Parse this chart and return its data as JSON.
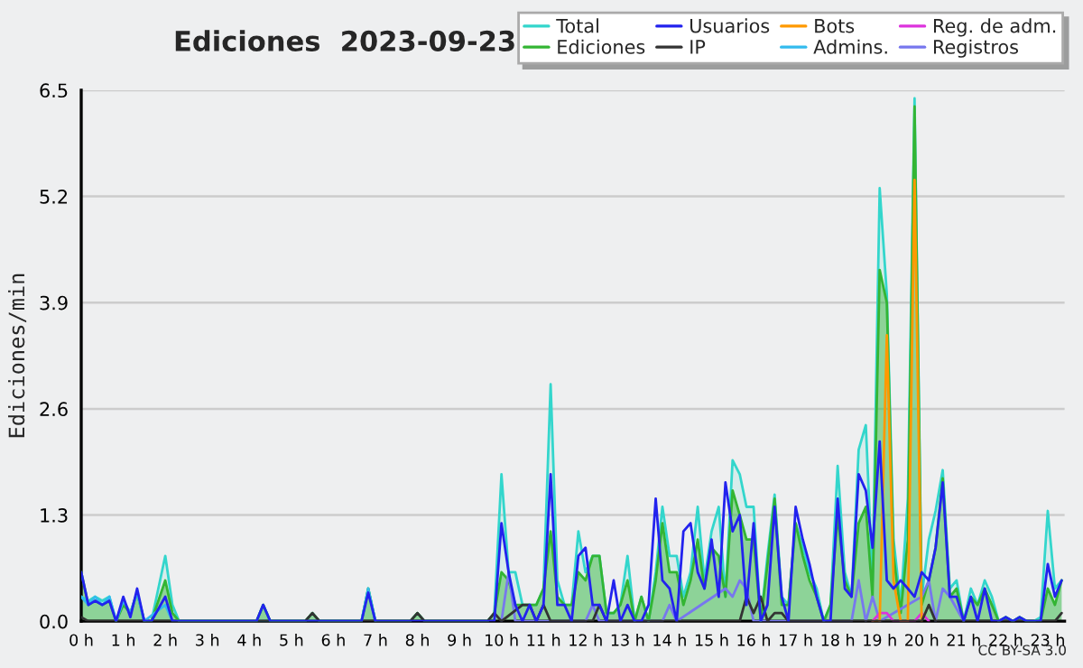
{
  "chart_data": {
    "type": "line",
    "title": "Ediciones  2023-09-23",
    "ylabel": "Ediciones/min",
    "annotations": [
      "CC BY-SA 3.0"
    ],
    "x": [
      0,
      0.17,
      0.33,
      0.5,
      0.67,
      0.83,
      1.0,
      1.17,
      1.33,
      1.5,
      1.67,
      2.0,
      2.17,
      2.33,
      4.17,
      4.33,
      4.5,
      5.33,
      5.5,
      5.67,
      6.67,
      6.83,
      7.0,
      7.83,
      8.0,
      8.17,
      9.67,
      9.83,
      10.0,
      10.17,
      10.33,
      10.5,
      10.67,
      10.83,
      11.0,
      11.17,
      11.33,
      11.5,
      11.67,
      11.83,
      12.0,
      12.17,
      12.33,
      12.5,
      12.67,
      12.83,
      13.0,
      13.17,
      13.33,
      13.5,
      13.67,
      13.83,
      14.0,
      14.17,
      14.33,
      14.5,
      14.67,
      14.83,
      15.0,
      15.17,
      15.33,
      15.5,
      15.67,
      15.83,
      16.0,
      16.17,
      16.33,
      16.5,
      16.67,
      16.83,
      17.0,
      17.17,
      17.33,
      17.5,
      17.67,
      17.83,
      18.0,
      18.17,
      18.33,
      18.5,
      18.67,
      18.83,
      19.0,
      19.17,
      19.33,
      19.5,
      19.67,
      19.83,
      20.0,
      20.17,
      20.33,
      20.5,
      20.67,
      20.83,
      21.0,
      21.17,
      21.33,
      21.5,
      21.67,
      21.83,
      22.0,
      22.17,
      22.33,
      22.5,
      22.67,
      22.83,
      23.0,
      23.17,
      23.33
    ],
    "series": [
      {
        "name": "Total",
        "type": "area",
        "color": "#33d6cc",
        "values": [
          0.3,
          0.25,
          0.3,
          0.25,
          0.3,
          0.0,
          0.25,
          0.1,
          0.35,
          0.0,
          0.0,
          0.8,
          0.2,
          0.0,
          0.0,
          0.2,
          0.0,
          0.0,
          0.1,
          0.0,
          0.0,
          0.4,
          0.0,
          0.0,
          0.1,
          0.0,
          0.0,
          0.1,
          1.8,
          0.6,
          0.6,
          0.2,
          0.2,
          0.2,
          0.4,
          2.9,
          0.5,
          0.2,
          0.2,
          1.1,
          0.6,
          0.8,
          0.8,
          0.1,
          0.1,
          0.2,
          0.8,
          0.0,
          0.3,
          0.0,
          0.6,
          1.4,
          0.8,
          0.8,
          0.3,
          0.6,
          1.4,
          0.5,
          1.1,
          1.4,
          0.3,
          1.97,
          1.8,
          1.4,
          1.4,
          0.0,
          0.8,
          1.55,
          0.3,
          0.2,
          1.2,
          0.9,
          0.6,
          0.4,
          0.0,
          0.2,
          1.9,
          0.6,
          0.3,
          2.1,
          2.4,
          0.5,
          5.3,
          4.0,
          1.0,
          0.2,
          1.5,
          6.4,
          0.3,
          1.0,
          1.35,
          1.85,
          0.4,
          0.5,
          0.0,
          0.4,
          0.2,
          0.5,
          0.3,
          0.0,
          0.05,
          0.0,
          0.05,
          0.0,
          0.0,
          0.05,
          1.35,
          0.4,
          0.5
        ]
      },
      {
        "name": "Ediciones",
        "type": "area",
        "color": "#33b533",
        "values": [
          0.6,
          0.2,
          0.25,
          0.2,
          0.25,
          0.0,
          0.2,
          0.1,
          0.35,
          0.0,
          0.0,
          0.5,
          0.1,
          0.0,
          0.0,
          0.2,
          0.0,
          0.0,
          0.1,
          0.0,
          0.0,
          0.4,
          0.0,
          0.0,
          0.1,
          0.0,
          0.0,
          0.1,
          0.6,
          0.5,
          0.2,
          0.2,
          0.2,
          0.2,
          0.4,
          1.1,
          0.3,
          0.2,
          0.2,
          0.6,
          0.5,
          0.8,
          0.8,
          0.1,
          0.1,
          0.2,
          0.5,
          0.0,
          0.3,
          0.0,
          0.5,
          1.2,
          0.6,
          0.6,
          0.2,
          0.5,
          1.0,
          0.4,
          0.9,
          0.8,
          0.3,
          1.6,
          1.3,
          1.0,
          1.0,
          0.0,
          0.7,
          1.5,
          0.2,
          0.2,
          1.2,
          0.8,
          0.5,
          0.3,
          0.0,
          0.2,
          1.3,
          0.5,
          0.3,
          1.2,
          1.4,
          0.3,
          4.3,
          3.9,
          0.8,
          0.1,
          1.0,
          6.3,
          0.2,
          0.5,
          0.9,
          1.75,
          0.3,
          0.4,
          0.0,
          0.3,
          0.2,
          0.4,
          0.2,
          0.0,
          0.05,
          0.0,
          0.05,
          0.0,
          0.0,
          0.0,
          0.4,
          0.2,
          0.5
        ]
      },
      {
        "name": "Usuarios",
        "color": "#2222ee",
        "values": [
          0.6,
          0.2,
          0.25,
          0.2,
          0.25,
          0.0,
          0.3,
          0.05,
          0.4,
          0.0,
          0.0,
          0.3,
          0.0,
          0.0,
          0.0,
          0.2,
          0.0,
          0.0,
          0.0,
          0.0,
          0.0,
          0.35,
          0.0,
          0.0,
          0.0,
          0.0,
          0.0,
          0.0,
          1.2,
          0.6,
          0.2,
          0.0,
          0.2,
          0.0,
          0.2,
          1.8,
          0.2,
          0.2,
          0.0,
          0.8,
          0.9,
          0.2,
          0.2,
          0.0,
          0.5,
          0.0,
          0.2,
          0.0,
          0.0,
          0.2,
          1.5,
          0.5,
          0.4,
          0.0,
          1.1,
          1.2,
          0.6,
          0.4,
          1.0,
          0.3,
          1.7,
          1.1,
          1.3,
          0.2,
          1.2,
          0.0,
          0.2,
          1.4,
          0.3,
          0.0,
          1.4,
          1.0,
          0.7,
          0.3,
          0.0,
          0.0,
          1.5,
          0.4,
          0.3,
          1.8,
          1.6,
          0.9,
          2.2,
          0.5,
          0.4,
          0.5,
          0.4,
          0.3,
          0.6,
          0.5,
          0.9,
          1.7,
          0.3,
          0.3,
          0.0,
          0.3,
          0.0,
          0.4,
          0.0,
          0.0,
          0.05,
          0.0,
          0.05,
          0.0,
          0.0,
          0.0,
          0.7,
          0.3,
          0.5
        ]
      },
      {
        "name": "IP",
        "color": "#333333",
        "x": [
          0,
          0.17,
          5.33,
          5.5,
          5.67,
          7.83,
          8.0,
          8.17,
          9.67,
          9.83,
          10.0,
          10.5,
          10.67,
          10.83,
          11.0,
          11.17,
          11.33,
          12.17,
          12.33,
          12.5,
          15.67,
          15.83,
          16.0,
          16.17,
          16.33,
          16.5,
          16.67,
          16.83,
          20.0,
          20.17,
          20.33,
          23.17,
          23.33
        ],
        "values": [
          0.05,
          0.0,
          0.0,
          0.1,
          0.0,
          0.0,
          0.1,
          0.0,
          0.0,
          0.1,
          0.0,
          0.2,
          0.2,
          0.0,
          0.2,
          0.0,
          0.0,
          0.0,
          0.2,
          0.0,
          0.0,
          0.3,
          0.1,
          0.3,
          0.0,
          0.1,
          0.1,
          0.0,
          0.0,
          0.2,
          0.0,
          0.0,
          0.1
        ]
      },
      {
        "name": "Bots",
        "color": "#ff9900",
        "x": [
          18.83,
          19.0,
          19.17,
          19.33,
          19.5,
          19.67,
          19.83,
          20.0
        ],
        "values": [
          0.0,
          0.0,
          3.5,
          0.5,
          0.0,
          0.0,
          5.4,
          0.0
        ]
      },
      {
        "name": "Admins.",
        "color": "#33bbee",
        "x": [
          0,
          0.17,
          0.33,
          0.5,
          0.67,
          0.83,
          1.0,
          1.17,
          1.33,
          1.5,
          2.0,
          2.17,
          2.33,
          6.67,
          6.83,
          7.0
        ],
        "values": [
          0.3,
          0.2,
          0.3,
          0.2,
          0.3,
          0.0,
          0.25,
          0.1,
          0.35,
          0.0,
          0.2,
          0.0,
          0.0,
          0.0,
          0.4,
          0.0
        ]
      },
      {
        "name": "Reg. de adm.",
        "color": "#dd33dd",
        "x": [
          18.83,
          19.0,
          19.17,
          19.33,
          19.83,
          20.0,
          20.17
        ],
        "values": [
          0.0,
          0.1,
          0.1,
          0.0,
          0.0,
          0.1,
          0.0
        ]
      },
      {
        "name": "Registros",
        "color": "#7777ee",
        "x": [
          10.0,
          10.17,
          10.33,
          12.0,
          12.17,
          12.33,
          13.83,
          14.0,
          14.17,
          15.33,
          15.5,
          15.67,
          15.83,
          16.0,
          18.33,
          18.5,
          18.67,
          18.83,
          19.0,
          20.0,
          20.17,
          20.33,
          20.5,
          20.67,
          21.0
        ],
        "values": [
          0.0,
          0.6,
          0.0,
          0.0,
          0.2,
          0.0,
          0.0,
          0.2,
          0.0,
          0.4,
          0.3,
          0.5,
          0.4,
          0.0,
          0.0,
          0.5,
          0.0,
          0.3,
          0.0,
          0.3,
          0.5,
          0.0,
          0.4,
          0.3,
          0.0
        ]
      }
    ],
    "xlim": [
      0,
      23.4
    ],
    "ylim": [
      0,
      6.5
    ],
    "xticks": [
      {
        "value": 0,
        "label": "0 h"
      },
      {
        "value": 1,
        "label": "1 h"
      },
      {
        "value": 2,
        "label": "2 h"
      },
      {
        "value": 3,
        "label": "3 h"
      },
      {
        "value": 4,
        "label": "4 h"
      },
      {
        "value": 5,
        "label": "5 h"
      },
      {
        "value": 6,
        "label": "6 h"
      },
      {
        "value": 7,
        "label": "7 h"
      },
      {
        "value": 8,
        "label": "8 h"
      },
      {
        "value": 9,
        "label": "9 h"
      },
      {
        "value": 10,
        "label": "10 h"
      },
      {
        "value": 11,
        "label": "11 h"
      },
      {
        "value": 12,
        "label": "12 h"
      },
      {
        "value": 13,
        "label": "13 h"
      },
      {
        "value": 14,
        "label": "14 h"
      },
      {
        "value": 15,
        "label": "15 h"
      },
      {
        "value": 16,
        "label": "16 h"
      },
      {
        "value": 17,
        "label": "17 h"
      },
      {
        "value": 18,
        "label": "18 h"
      },
      {
        "value": 19,
        "label": "19 h"
      },
      {
        "value": 20,
        "label": "20 h"
      },
      {
        "value": 21,
        "label": "21 h"
      },
      {
        "value": 22,
        "label": "22 h"
      },
      {
        "value": 23,
        "label": "23 h"
      }
    ],
    "yticks": [
      {
        "value": 0,
        "label": "0.0"
      },
      1.3,
      2.6,
      3.9,
      5.2,
      6.5
    ],
    "grid": "y",
    "legend": "top right",
    "marker": "none",
    "line_style": "solid"
  }
}
